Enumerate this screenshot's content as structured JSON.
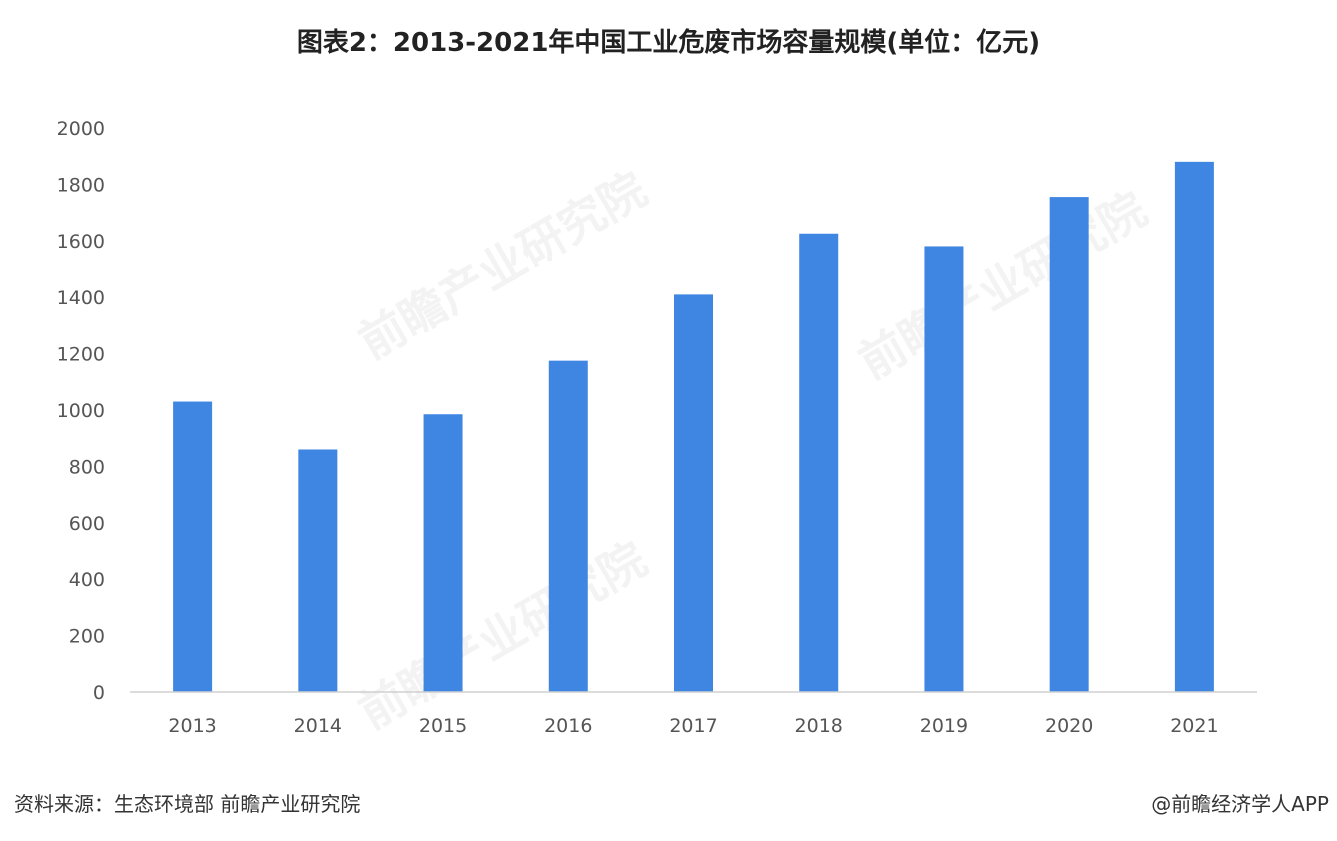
{
  "title": "图表2：2013-2021年中国工业危废市场容量规模(单位：亿元)",
  "source": "资料来源：生态环境部 前瞻产业研究院",
  "credit": "@前瞻经济学人APP",
  "watermark_text": "前瞻产业研究院",
  "colors": {
    "bar": "#3f86e3",
    "axis": "#d0d0d0"
  },
  "chart_data": {
    "type": "bar",
    "title": "图表2：2013-2021年中国工业危废市场容量规模(单位：亿元)",
    "categories": [
      "2013",
      "2014",
      "2015",
      "2016",
      "2017",
      "2018",
      "2019",
      "2020",
      "2021"
    ],
    "values": [
      1030,
      860,
      985,
      1175,
      1410,
      1625,
      1580,
      1755,
      1880
    ],
    "ylim": [
      0,
      2000
    ],
    "yticks": [
      0,
      200,
      400,
      600,
      800,
      1000,
      1200,
      1400,
      1600,
      1800,
      2000
    ],
    "grid": false,
    "legend": "none"
  }
}
